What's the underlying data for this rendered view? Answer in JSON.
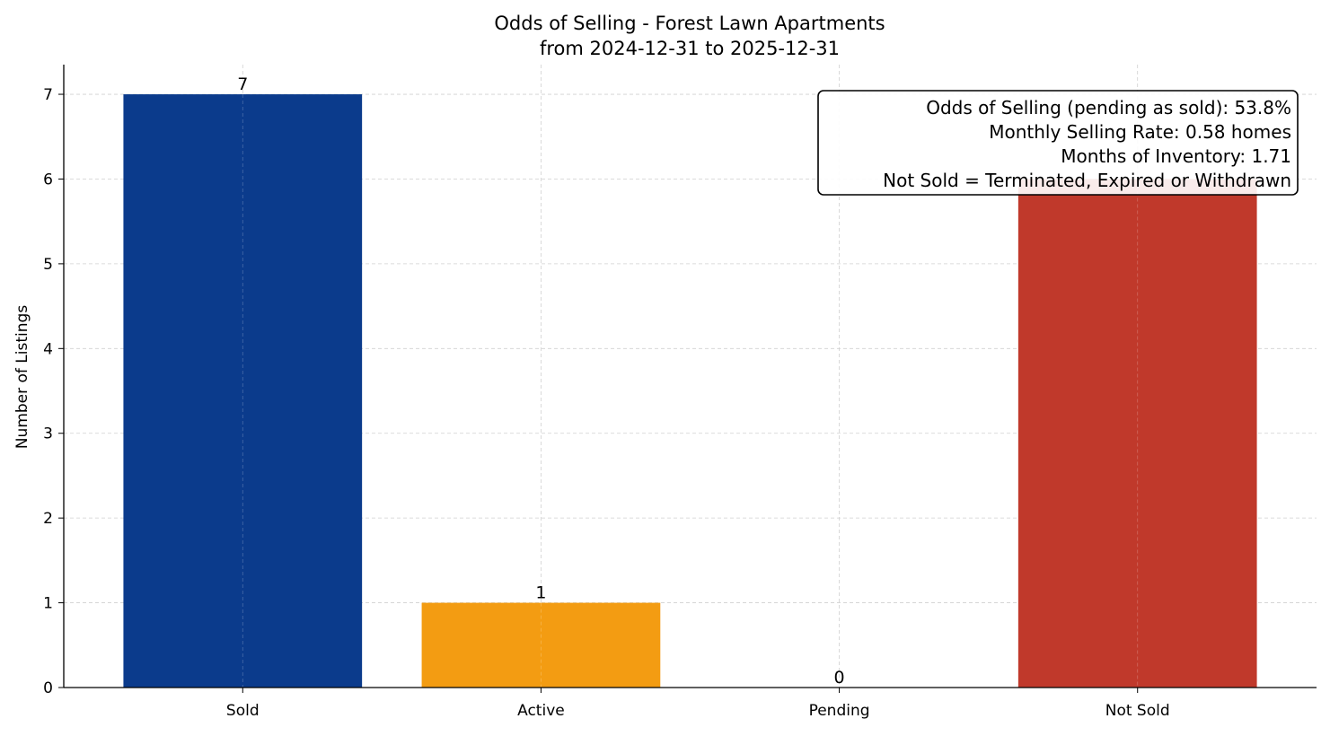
{
  "chart_data": {
    "type": "bar",
    "title": "Odds of Selling - Forest Lawn Apartments",
    "subtitle": "from 2024-12-31 to 2025-12-31",
    "xlabel": "",
    "ylabel": "Number of Listings",
    "categories": [
      "Sold",
      "Active",
      "Pending",
      "Not Sold"
    ],
    "values": [
      7,
      1,
      0,
      6
    ],
    "data_labels": [
      "7",
      "1",
      "0",
      ""
    ],
    "colors": [
      "#0b3b8c",
      "#f39c12",
      "#f1c40f",
      "#c0392b"
    ],
    "ylim": [
      0,
      7.35
    ],
    "yticks": [
      0,
      1,
      2,
      3,
      4,
      5,
      6,
      7
    ],
    "grid": true,
    "annotation": {
      "placement": "top-right",
      "lines": [
        "Odds of Selling (pending as sold): 53.8%",
        "Monthly Selling Rate: 0.58 homes",
        "Months of Inventory: 1.71",
        "Not Sold = Terminated, Expired or Withdrawn"
      ]
    }
  }
}
